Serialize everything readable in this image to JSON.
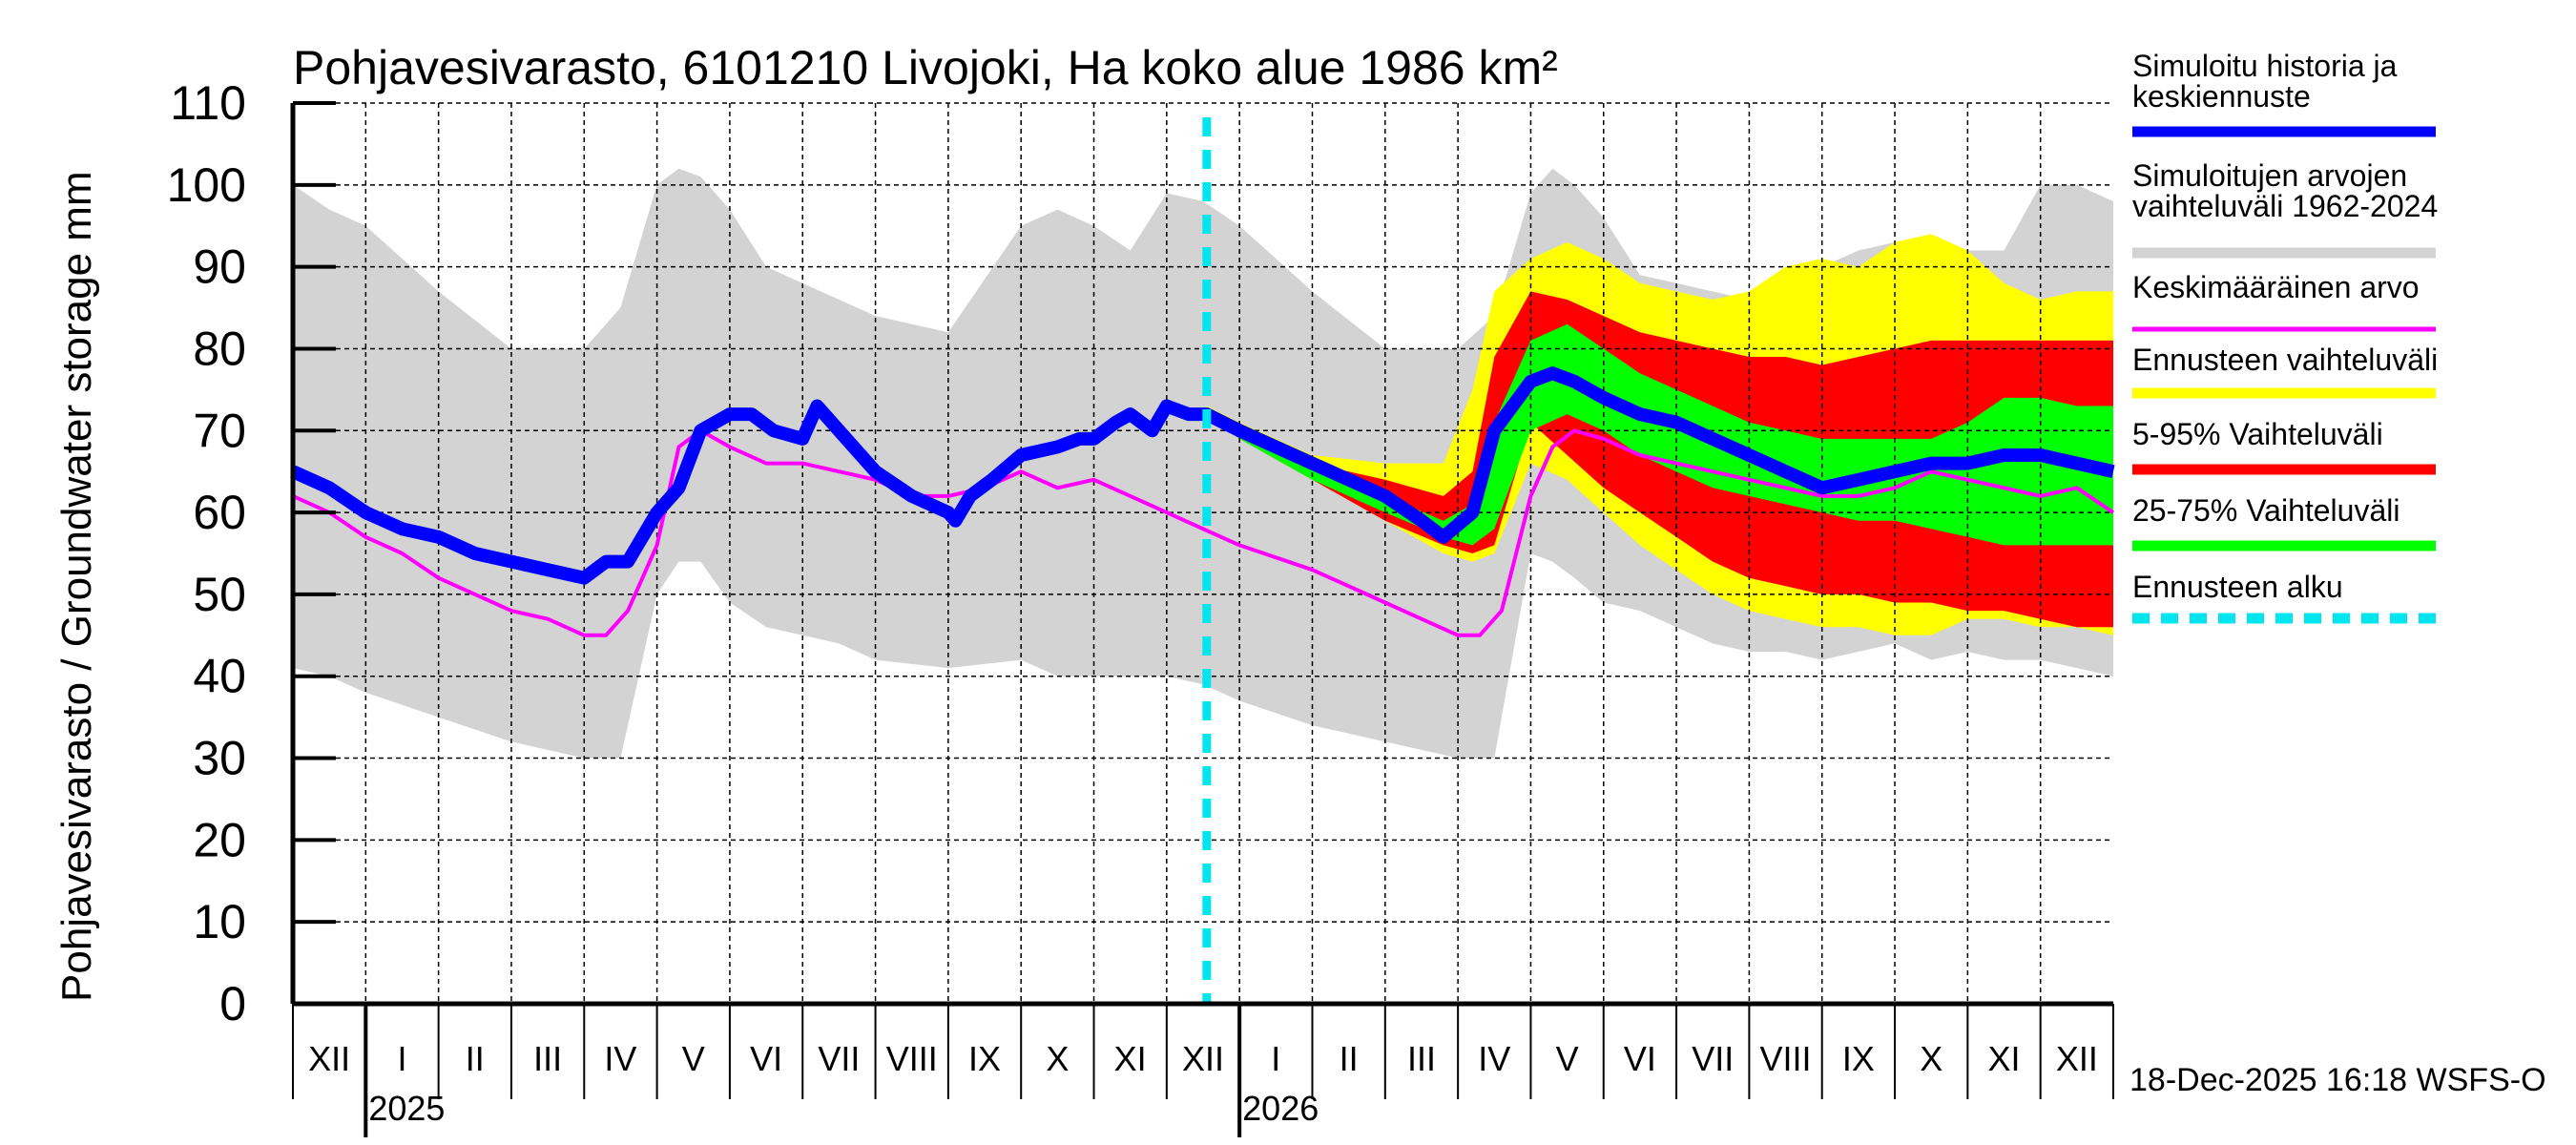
{
  "chart_data": {
    "type": "area",
    "title": "Pohjavesivarasto, 6101210 Livojoki, Ha koko alue 1986 km²",
    "ylabel": "Pohjavesivarasto / Groundwater storage   mm",
    "xlabel": "",
    "ylim": [
      0,
      110
    ],
    "yticks": [
      "0",
      "10",
      "20",
      "30",
      "40",
      "50",
      "60",
      "70",
      "80",
      "90",
      "100",
      "110"
    ],
    "grid": true,
    "x_unit": "months since 2024-12-01",
    "xlim": [
      0,
      25
    ],
    "month_labels": [
      "XII",
      "I",
      "II",
      "III",
      "IV",
      "V",
      "VI",
      "VII",
      "VIII",
      "IX",
      "X",
      "XI",
      "XII",
      "I",
      "II",
      "III",
      "IV",
      "V",
      "VI",
      "VII",
      "VIII",
      "IX",
      "X",
      "XI",
      "XII"
    ],
    "year_labels": [
      {
        "label": "2025",
        "at": 1
      },
      {
        "label": "2026",
        "at": 13
      }
    ],
    "forecast_start": 12.55,
    "timestamp": "18-Dec-2025 16:18 WSFS-O",
    "legend_position": "right",
    "legend": [
      {
        "label": "Simuloitu historia ja\nkeskiennuste",
        "color": "#0000ff",
        "style": "solid-thick"
      },
      {
        "label": "Simuloitujen arvojen\nvaihteluväli 1962-2024",
        "color": "#d3d3d3",
        "style": "band"
      },
      {
        "label": "Keskimääräinen arvo",
        "color": "#ff00ff",
        "style": "solid"
      },
      {
        "label": "Ennusteen vaihteluväli",
        "color": "#ffff00",
        "style": "band"
      },
      {
        "label": "5-95% Vaihteluväli",
        "color": "#ff0000",
        "style": "band"
      },
      {
        "label": "25-75% Vaihteluväli",
        "color": "#00ff00",
        "style": "band"
      },
      {
        "label": "Ennusteen alku",
        "color": "#00e5ee",
        "style": "dashed"
      }
    ],
    "series": [
      {
        "name": "Simuloitujen arvojen vaihteluväli 1962-2024",
        "type": "band",
        "color": "#d3d3d3",
        "x": [
          0,
          0.5,
          1,
          2,
          3,
          4,
          4.5,
          5,
          5.3,
          5.6,
          6,
          6.5,
          7,
          7.5,
          8,
          9,
          10,
          10.5,
          11,
          11.5,
          12,
          12.5,
          13,
          14,
          15,
          16,
          16.5,
          17,
          17.3,
          17.6,
          18,
          18.5,
          19,
          19.5,
          20,
          20.5,
          21,
          21.5,
          22,
          22.5,
          23,
          23.5,
          24,
          24.5,
          25
        ],
        "high": [
          100,
          97,
          95,
          87,
          80,
          80,
          85,
          100,
          102,
          101,
          97,
          90,
          88,
          86,
          84,
          82,
          95,
          97,
          95,
          92,
          99,
          98,
          95,
          87,
          80,
          80,
          84,
          99,
          102,
          100,
          96,
          89,
          88,
          87,
          86,
          87,
          90,
          92,
          93,
          92,
          92,
          92,
          100,
          100,
          98
        ],
        "low": [
          41,
          40,
          38,
          35,
          32,
          30,
          30,
          50,
          54,
          54,
          49,
          46,
          45,
          44,
          42,
          41,
          42,
          40,
          40,
          40,
          40,
          39,
          37,
          34,
          32,
          30,
          30,
          55,
          54,
          52,
          49,
          48,
          46,
          44,
          43,
          43,
          42,
          43,
          44,
          42,
          43,
          42,
          42,
          41,
          40
        ]
      },
      {
        "name": "Ennusteen vaihteluväli",
        "type": "band",
        "color": "#ffff00",
        "x": [
          12.55,
          13,
          14,
          15,
          15.8,
          16.2,
          16.5,
          17,
          17.5,
          18,
          18.5,
          19,
          19.5,
          20,
          20.5,
          21,
          21.5,
          22,
          22.5,
          23,
          23.5,
          24,
          24.5,
          25
        ],
        "high": [
          73,
          71,
          67,
          66,
          66,
          75,
          87,
          91,
          93,
          91,
          88,
          87,
          86,
          87,
          90,
          91,
          90,
          93,
          94,
          92,
          88,
          86,
          87,
          87
        ],
        "low": [
          72,
          69,
          64,
          59,
          55,
          54,
          55,
          66,
          64,
          60,
          56,
          53,
          50,
          48,
          47,
          46,
          46,
          45,
          45,
          47,
          47,
          46,
          46,
          45
        ]
      },
      {
        "name": "5-95% Vaihteluväli",
        "type": "band",
        "color": "#ff0000",
        "x": [
          12.55,
          13,
          14,
          15,
          15.8,
          16.2,
          16.5,
          17,
          17.5,
          18,
          18.5,
          19,
          19.5,
          20,
          20.5,
          21,
          21.5,
          22,
          22.5,
          23,
          23.5,
          24,
          24.5,
          25
        ],
        "high": [
          72,
          70,
          66,
          64,
          62,
          65,
          79,
          87,
          86,
          84,
          82,
          81,
          80,
          79,
          79,
          78,
          79,
          80,
          81,
          81,
          81,
          81,
          81,
          81
        ],
        "low": [
          72,
          69,
          64,
          59,
          56,
          55,
          56,
          71,
          67,
          63,
          60,
          57,
          54,
          52,
          51,
          50,
          50,
          49,
          49,
          48,
          48,
          47,
          46,
          46
        ],
        "clip_note": "forecast ensemble 5-95%"
      },
      {
        "name": "25-75% Vaihteluväli",
        "type": "band",
        "color": "#00ff00",
        "x": [
          12.55,
          13,
          14,
          15,
          15.8,
          16.2,
          16.5,
          17,
          17.5,
          18,
          18.5,
          19,
          19.5,
          20,
          20.5,
          21,
          21.5,
          22,
          22.5,
          23,
          23.5,
          24,
          24.5,
          25
        ],
        "high": [
          72,
          70,
          66,
          62,
          59,
          61,
          71,
          81,
          83,
          80,
          77,
          75,
          73,
          71,
          70,
          69,
          69,
          69,
          69,
          71,
          74,
          74,
          73,
          73
        ],
        "low": [
          72,
          69,
          64,
          60,
          57,
          56,
          58,
          70,
          72,
          70,
          67,
          65,
          63,
          62,
          61,
          60,
          59,
          59,
          58,
          57,
          56,
          56,
          56,
          56
        ]
      },
      {
        "name": "Keskimääräinen arvo",
        "type": "line",
        "color": "#ff00ff",
        "x": [
          0,
          0.5,
          1,
          1.5,
          2,
          2.5,
          3,
          3.5,
          4,
          4.3,
          4.6,
          5,
          5.3,
          5.6,
          6,
          6.5,
          7,
          7.5,
          8,
          8.5,
          9,
          9.5,
          10,
          10.5,
          11,
          11.5,
          12,
          12.5,
          13,
          14,
          15,
          15.5,
          16,
          16.3,
          16.6,
          17,
          17.3,
          17.6,
          18,
          18.5,
          19,
          19.5,
          20,
          20.5,
          21,
          21.5,
          22,
          22.5,
          23,
          23.5,
          24,
          24.5,
          25
        ],
        "values": [
          62,
          60,
          57,
          55,
          52,
          50,
          48,
          47,
          45,
          45,
          48,
          56,
          68,
          70,
          68,
          66,
          66,
          65,
          64,
          62,
          62,
          63,
          65,
          63,
          64,
          62,
          60,
          58,
          56,
          53,
          49,
          47,
          45,
          45,
          48,
          62,
          68,
          70,
          69,
          67,
          66,
          65,
          64,
          63,
          62,
          62,
          63,
          65,
          64,
          63,
          62,
          63,
          60
        ]
      },
      {
        "name": "Simuloitu historia ja keskiennuste",
        "type": "line",
        "color": "#0000ff",
        "x": [
          0,
          0.5,
          1,
          1.5,
          2,
          2.5,
          3,
          3.5,
          4,
          4.3,
          4.6,
          5,
          5.3,
          5.6,
          6,
          6.3,
          6.6,
          7,
          7.2,
          7.5,
          8,
          8.5,
          9,
          9.1,
          9.3,
          9.6,
          10,
          10.5,
          10.8,
          11,
          11.3,
          11.5,
          11.8,
          12,
          12.3,
          12.55,
          13,
          14,
          15,
          15.5,
          15.8,
          16.2,
          16.5,
          17,
          17.3,
          17.6,
          18,
          18.5,
          19,
          19.5,
          20,
          20.5,
          21,
          21.5,
          22,
          22.5,
          23,
          23.5,
          24,
          24.5,
          25
        ],
        "values": [
          65,
          63,
          60,
          58,
          57,
          55,
          54,
          53,
          52,
          54,
          54,
          60,
          63,
          70,
          72,
          72,
          70,
          69,
          73,
          70,
          65,
          62,
          60,
          59,
          62,
          64,
          67,
          68,
          69,
          69,
          71,
          72,
          70,
          73,
          72,
          72,
          70,
          66,
          62,
          59,
          57,
          60,
          70,
          76,
          77,
          76,
          74,
          72,
          71,
          69,
          67,
          65,
          63,
          64,
          65,
          66,
          66,
          67,
          67,
          66,
          65
        ]
      }
    ]
  }
}
